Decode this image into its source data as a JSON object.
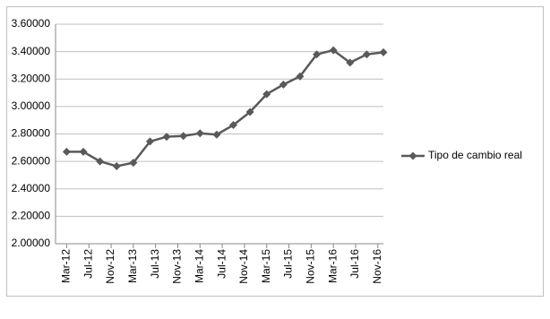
{
  "chart_data": {
    "type": "line",
    "x": [
      "2012-03",
      "2012-06",
      "2012-09",
      "2012-12",
      "2013-03",
      "2013-06",
      "2013-09",
      "2013-12",
      "2014-03",
      "2014-06",
      "2014-09",
      "2014-12",
      "2015-03",
      "2015-06",
      "2015-09",
      "2015-12",
      "2016-03",
      "2016-06",
      "2016-09",
      "2016-12"
    ],
    "series": [
      {
        "name": "Tipo de cambio real",
        "color": "#595959",
        "values": [
          2.67,
          2.67,
          2.6,
          2.565,
          2.59,
          2.745,
          2.78,
          2.785,
          2.805,
          2.795,
          2.865,
          2.96,
          3.09,
          3.16,
          3.22,
          3.38,
          3.41,
          3.32,
          3.38,
          3.395
        ]
      }
    ],
    "xlim": [
      "2012-01",
      "2016-12"
    ],
    "xticks": [
      {
        "value": "2012-03",
        "label": "Mar-12"
      },
      {
        "value": "2012-07",
        "label": "Jul-12"
      },
      {
        "value": "2012-11",
        "label": "Nov-12"
      },
      {
        "value": "2013-03",
        "label": "Mar-13"
      },
      {
        "value": "2013-07",
        "label": "Jul-13"
      },
      {
        "value": "2013-11",
        "label": "Nov-13"
      },
      {
        "value": "2014-03",
        "label": "Mar-14"
      },
      {
        "value": "2014-07",
        "label": "Jul-14"
      },
      {
        "value": "2014-11",
        "label": "Nov-14"
      },
      {
        "value": "2015-03",
        "label": "Mar-15"
      },
      {
        "value": "2015-07",
        "label": "Jul-15"
      },
      {
        "value": "2015-11",
        "label": "Nov-15"
      },
      {
        "value": "2016-03",
        "label": "Mar-16"
      },
      {
        "value": "2016-07",
        "label": "Jul-16"
      },
      {
        "value": "2016-11",
        "label": "Nov-16"
      }
    ],
    "ylim": [
      2.0,
      3.6
    ],
    "yticks": [
      {
        "value": 2.0,
        "label": "2.00000"
      },
      {
        "value": 2.2,
        "label": "2.20000"
      },
      {
        "value": 2.4,
        "label": "2.40000"
      },
      {
        "value": 2.6,
        "label": "2.60000"
      },
      {
        "value": 2.8,
        "label": "2.80000"
      },
      {
        "value": 3.0,
        "label": "3.00000"
      },
      {
        "value": 3.2,
        "label": "3.20000"
      },
      {
        "value": 3.4,
        "label": "3.40000"
      },
      {
        "value": 3.6,
        "label": "3.60000"
      }
    ],
    "grid": true,
    "legend": "right"
  }
}
